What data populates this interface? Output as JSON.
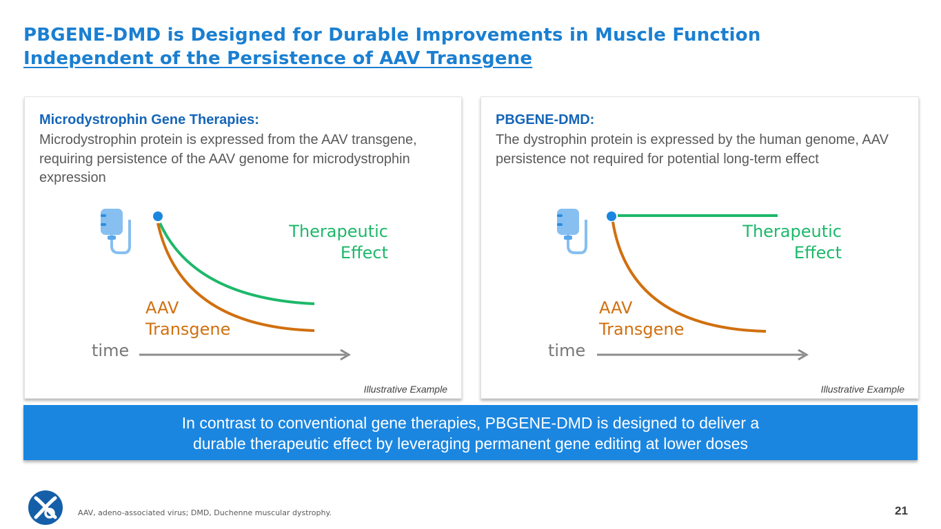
{
  "title": {
    "line1": "PBGENE-DMD is Designed for Durable Improvements in Muscle Function",
    "line2": "Independent of the Persistence of AAV Transgene"
  },
  "panels": [
    {
      "heading": "Microdystrophin Gene Therapies:",
      "description": "Microdystrophin protein is expressed from the AAV transgene, requiring persistence of the AAV genome for microdystrophin expression",
      "therapeutic_label_1": "Therapeutic",
      "therapeutic_label_2": "Effect",
      "aav_label_1": "AAV",
      "aav_label_2": "Transgene",
      "time_label": "time",
      "note": "Illustrative Example",
      "therapeutic_curve": "declining"
    },
    {
      "heading": "PBGENE-DMD:",
      "description": "The dystrophin protein is expressed by the human genome, AAV persistence not required for potential long-term effect",
      "therapeutic_label_1": "Therapeutic",
      "therapeutic_label_2": "Effect",
      "aav_label_1": "AAV",
      "aav_label_2": "Transgene",
      "time_label": "time",
      "note": "Illustrative Example",
      "therapeutic_curve": "sustained"
    }
  ],
  "banner": {
    "line1": "In contrast to conventional gene therapies, PBGENE-DMD is designed to deliver a",
    "line2": "durable therapeutic effect by leveraging permanent gene editing at lower doses"
  },
  "footnote": "AAV, adeno-associated virus; DMD, Duchenne muscular dystrophy.",
  "page_number": "21",
  "colors": {
    "title": "#1a7fd1",
    "heading": "#1565b8",
    "therapeutic": "#1db86a",
    "aav": "#d0700f",
    "axis": "#8c8c8c",
    "dot": "#1a86e0",
    "iv_bag": "#86bff0",
    "banner": "#1b86e0"
  },
  "icons": {
    "iv_bag": "iv-bag-icon",
    "logo": "company-logo-icon"
  }
}
